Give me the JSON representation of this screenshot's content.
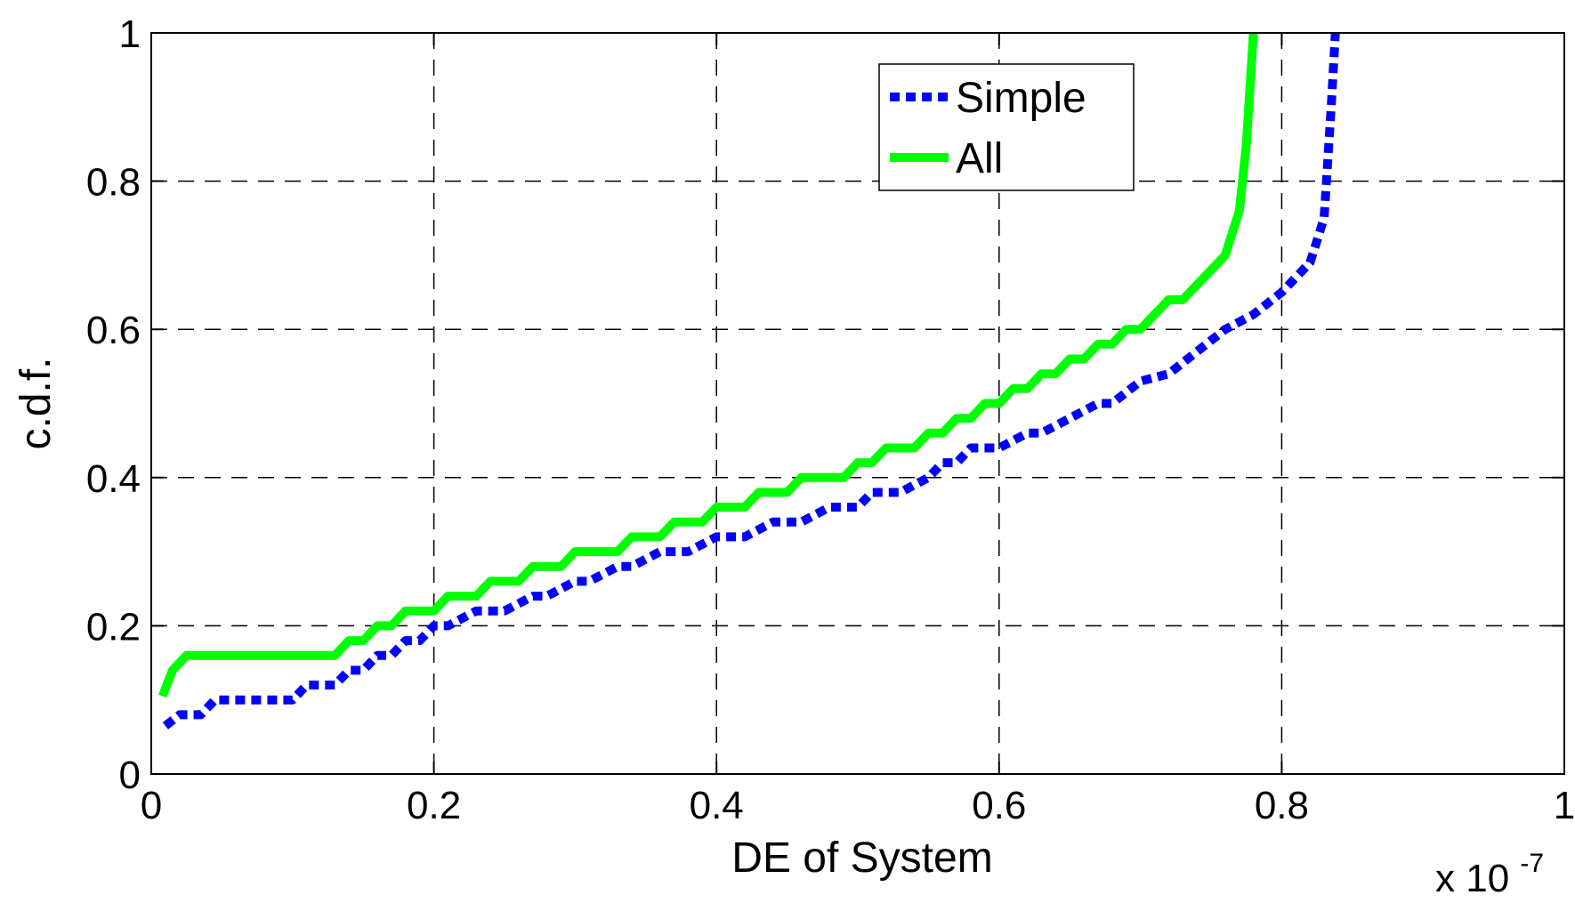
{
  "chart_data": {
    "type": "line",
    "xlabel": "DE of System",
    "ylabel": "c.d.f.",
    "x_multiplier_label": {
      "base": "x 10",
      "exponent": "-7"
    },
    "xlim": [
      0,
      1
    ],
    "ylim": [
      0,
      1
    ],
    "xticks": [
      "0",
      "0.2",
      "0.4",
      "0.6",
      "0.8",
      "1"
    ],
    "yticks": [
      "0",
      "0.2",
      "0.4",
      "0.6",
      "0.8",
      "1"
    ],
    "grid": true,
    "legend_position": "top-right",
    "series": [
      {
        "name": "Simple",
        "color": "#0000ff",
        "style": "dotted",
        "points": [
          [
            0.01,
            0.065
          ],
          [
            0.02,
            0.08
          ],
          [
            0.035,
            0.08
          ],
          [
            0.045,
            0.1
          ],
          [
            0.07,
            0.1
          ],
          [
            0.1,
            0.1
          ],
          [
            0.11,
            0.12
          ],
          [
            0.13,
            0.12
          ],
          [
            0.14,
            0.14
          ],
          [
            0.15,
            0.14
          ],
          [
            0.16,
            0.16
          ],
          [
            0.17,
            0.16
          ],
          [
            0.18,
            0.18
          ],
          [
            0.19,
            0.18
          ],
          [
            0.2,
            0.2
          ],
          [
            0.21,
            0.2
          ],
          [
            0.23,
            0.22
          ],
          [
            0.25,
            0.22
          ],
          [
            0.27,
            0.24
          ],
          [
            0.28,
            0.24
          ],
          [
            0.3,
            0.26
          ],
          [
            0.31,
            0.26
          ],
          [
            0.33,
            0.28
          ],
          [
            0.34,
            0.28
          ],
          [
            0.36,
            0.3
          ],
          [
            0.38,
            0.3
          ],
          [
            0.4,
            0.32
          ],
          [
            0.42,
            0.32
          ],
          [
            0.44,
            0.34
          ],
          [
            0.46,
            0.34
          ],
          [
            0.48,
            0.36
          ],
          [
            0.5,
            0.36
          ],
          [
            0.51,
            0.38
          ],
          [
            0.53,
            0.38
          ],
          [
            0.55,
            0.4
          ],
          [
            0.56,
            0.42
          ],
          [
            0.57,
            0.42
          ],
          [
            0.58,
            0.44
          ],
          [
            0.6,
            0.44
          ],
          [
            0.62,
            0.46
          ],
          [
            0.63,
            0.46
          ],
          [
            0.65,
            0.48
          ],
          [
            0.67,
            0.5
          ],
          [
            0.68,
            0.5
          ],
          [
            0.7,
            0.53
          ],
          [
            0.72,
            0.54
          ],
          [
            0.74,
            0.57
          ],
          [
            0.76,
            0.6
          ],
          [
            0.78,
            0.62
          ],
          [
            0.8,
            0.65
          ],
          [
            0.82,
            0.69
          ],
          [
            0.83,
            0.75
          ],
          [
            0.835,
            0.9
          ],
          [
            0.838,
            1.0
          ]
        ]
      },
      {
        "name": "All",
        "color": "#00ff00",
        "style": "solid",
        "points": [
          [
            0.008,
            0.105
          ],
          [
            0.015,
            0.14
          ],
          [
            0.025,
            0.16
          ],
          [
            0.05,
            0.16
          ],
          [
            0.1,
            0.16
          ],
          [
            0.13,
            0.16
          ],
          [
            0.14,
            0.18
          ],
          [
            0.15,
            0.18
          ],
          [
            0.16,
            0.2
          ],
          [
            0.17,
            0.2
          ],
          [
            0.18,
            0.22
          ],
          [
            0.2,
            0.22
          ],
          [
            0.21,
            0.24
          ],
          [
            0.23,
            0.24
          ],
          [
            0.24,
            0.26
          ],
          [
            0.26,
            0.26
          ],
          [
            0.27,
            0.28
          ],
          [
            0.29,
            0.28
          ],
          [
            0.3,
            0.3
          ],
          [
            0.33,
            0.3
          ],
          [
            0.34,
            0.32
          ],
          [
            0.36,
            0.32
          ],
          [
            0.37,
            0.34
          ],
          [
            0.39,
            0.34
          ],
          [
            0.4,
            0.36
          ],
          [
            0.42,
            0.36
          ],
          [
            0.43,
            0.38
          ],
          [
            0.45,
            0.38
          ],
          [
            0.46,
            0.4
          ],
          [
            0.49,
            0.4
          ],
          [
            0.5,
            0.42
          ],
          [
            0.51,
            0.42
          ],
          [
            0.52,
            0.44
          ],
          [
            0.54,
            0.44
          ],
          [
            0.55,
            0.46
          ],
          [
            0.56,
            0.46
          ],
          [
            0.57,
            0.48
          ],
          [
            0.58,
            0.48
          ],
          [
            0.59,
            0.5
          ],
          [
            0.6,
            0.5
          ],
          [
            0.61,
            0.52
          ],
          [
            0.62,
            0.52
          ],
          [
            0.63,
            0.54
          ],
          [
            0.64,
            0.54
          ],
          [
            0.65,
            0.56
          ],
          [
            0.66,
            0.56
          ],
          [
            0.67,
            0.58
          ],
          [
            0.68,
            0.58
          ],
          [
            0.69,
            0.6
          ],
          [
            0.7,
            0.6
          ],
          [
            0.71,
            0.62
          ],
          [
            0.72,
            0.64
          ],
          [
            0.73,
            0.64
          ],
          [
            0.75,
            0.68
          ],
          [
            0.76,
            0.7
          ],
          [
            0.77,
            0.76
          ],
          [
            0.775,
            0.85
          ],
          [
            0.78,
            1.0
          ]
        ]
      }
    ]
  }
}
